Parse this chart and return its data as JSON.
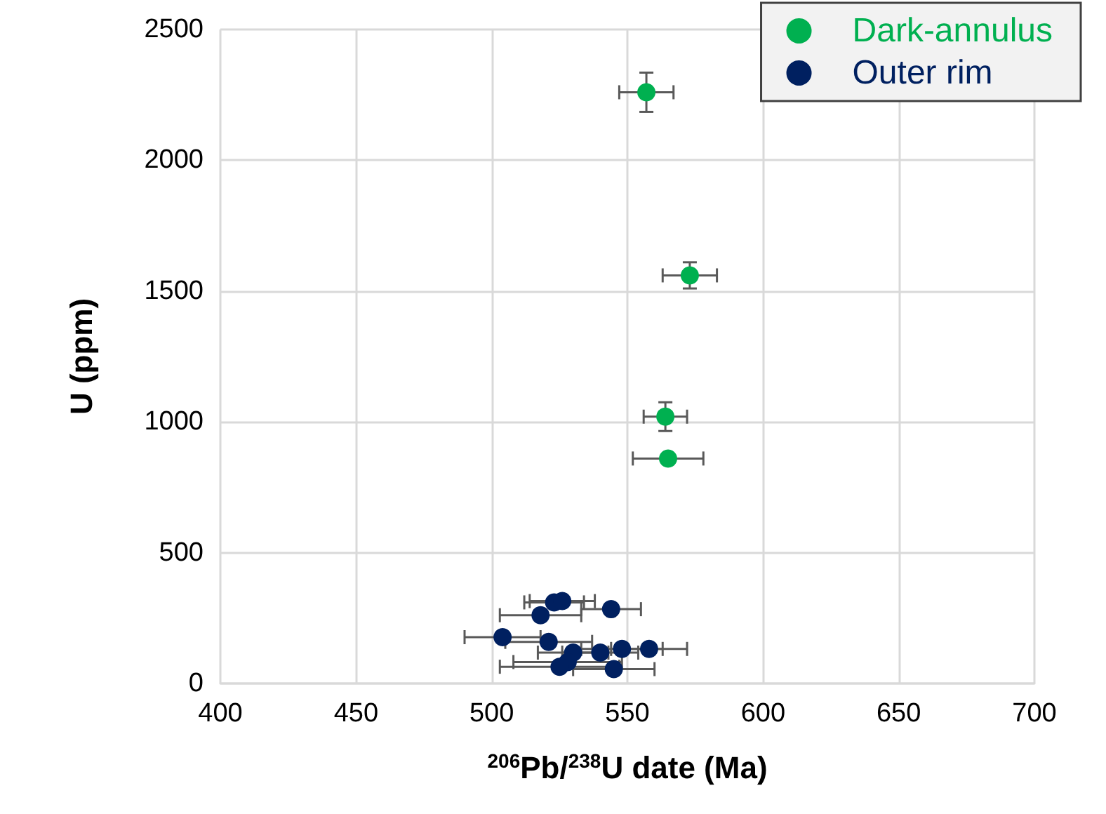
{
  "chart_data": {
    "type": "scatter",
    "xlabel": "$^{206}$Pb/$^{238}$U date (Ma)",
    "ylabel": "U (ppm)",
    "xlim": [
      400,
      700
    ],
    "xticks": [
      400,
      450,
      500,
      550,
      600,
      650,
      700
    ],
    "ylim": [
      0,
      2500
    ],
    "yticks": [
      0,
      500,
      1000,
      1500,
      2000,
      2500
    ],
    "grid": true,
    "legend": "top right",
    "marker": "circle",
    "series": [
      {
        "name": "Dark-annulus",
        "color": "#00b050",
        "x": [
          557,
          573,
          564,
          565
        ],
        "values": [
          2260,
          1560,
          1020,
          860
        ],
        "errors": [
          75,
          50,
          55,
          null
        ],
        "xerrors": [
          10,
          10,
          8,
          13
        ]
      },
      {
        "name": "Outer rim",
        "color": "#002060",
        "x": [
          523,
          526,
          544,
          518,
          504,
          521,
          548,
          557,
          558,
          530,
          540,
          528,
          525,
          545
        ],
        "values": [
          310,
          315,
          284,
          261,
          177,
          159,
          132,
          null,
          132,
          118,
          118,
          82,
          64,
          55
        ],
        "errors": [
          null,
          null,
          null,
          null,
          null,
          null,
          null,
          null,
          null,
          null,
          null,
          null,
          null,
          null
        ],
        "xerrors": [
          11,
          12,
          11,
          15,
          14,
          16,
          15,
          null,
          14,
          13,
          14,
          20,
          22,
          15
        ]
      }
    ]
  }
}
